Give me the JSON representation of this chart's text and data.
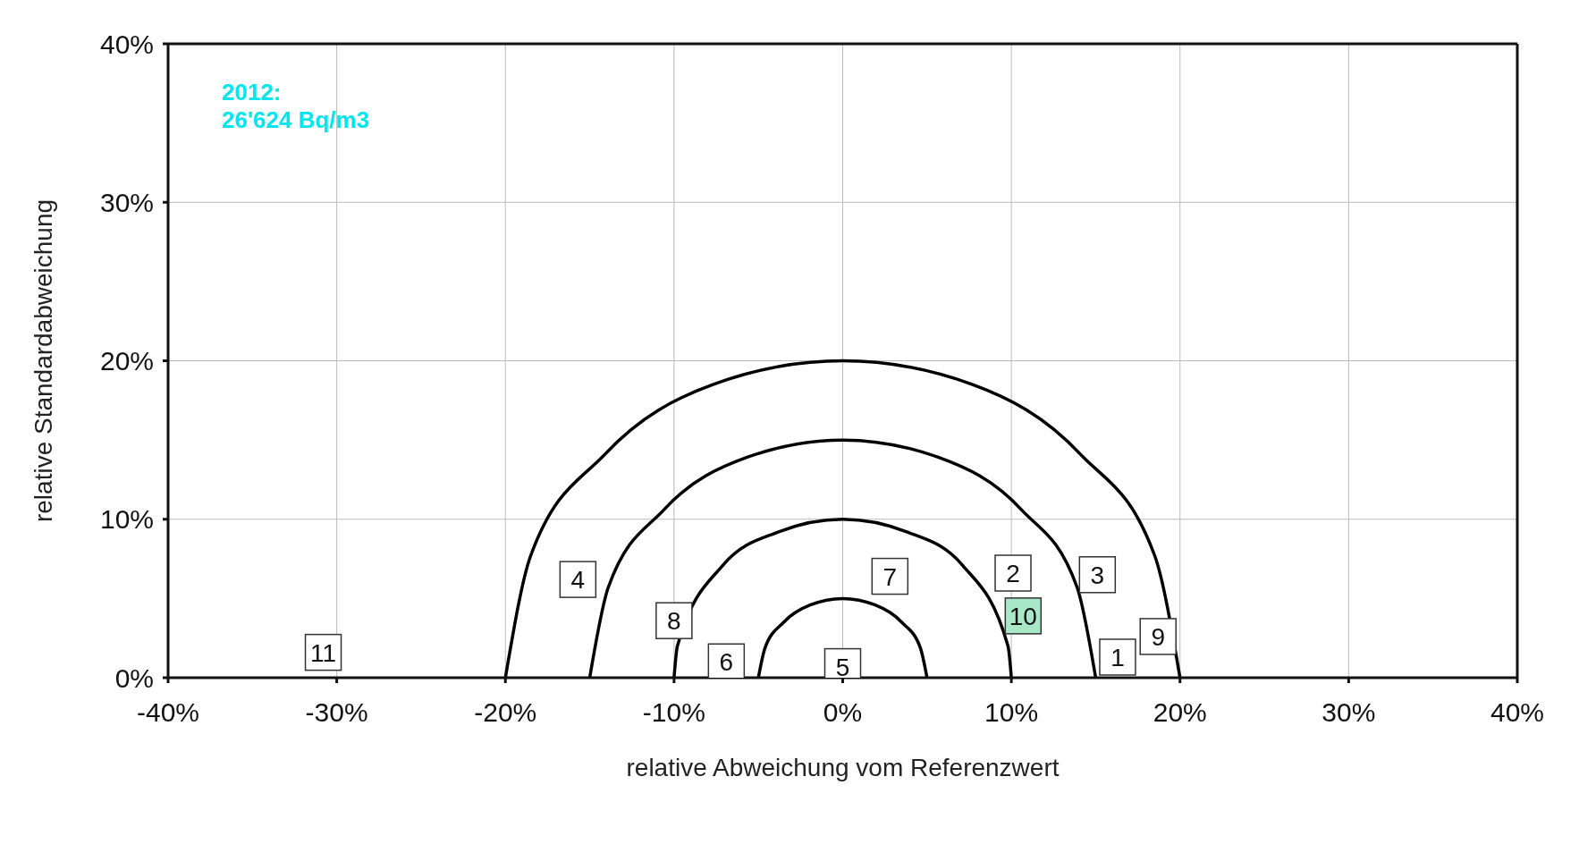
{
  "chart_data": {
    "type": "scatter",
    "xlabel": "relative Abweichung vom Referenzwert",
    "ylabel": "relative Standardabweichung",
    "xlim": [
      -40,
      40
    ],
    "ylim": [
      0,
      40
    ],
    "annotations": [
      "2012:\n26'624 Bq/m3",
      {
        "text": "1",
        "x": 16.3,
        "y": 1.3
      },
      {
        "text": "2",
        "x": 10.1,
        "y": 6.6
      },
      {
        "text": "3",
        "x": 15.1,
        "y": 6.5
      },
      {
        "text": "4",
        "x": -15.7,
        "y": 6.2
      },
      {
        "text": "5",
        "x": 0,
        "y": 0.7
      },
      {
        "text": "6",
        "x": -6.9,
        "y": 1.0
      },
      {
        "text": "7",
        "x": 2.8,
        "y": 6.4
      },
      {
        "text": "8",
        "x": -10,
        "y": 3.6
      },
      {
        "text": "9",
        "x": 18.7,
        "y": 2.6
      },
      {
        "text": "10",
        "x": 10.7,
        "y": 3.9
      },
      {
        "text": "11",
        "x": -30.8,
        "y": 1.6
      }
    ],
    "xticks": [
      {
        "value": -40,
        "label": "-40%"
      },
      {
        "value": -30,
        "label": "-30%"
      },
      {
        "value": -20,
        "label": "-20%"
      },
      {
        "value": -10,
        "label": "-10%"
      },
      {
        "value": 0,
        "label": "0%"
      },
      {
        "value": 10,
        "label": "10%"
      },
      {
        "value": 20,
        "label": "20%"
      },
      {
        "value": 30,
        "label": "30%"
      },
      {
        "value": 40,
        "label": "40%"
      }
    ],
    "yticks": [
      {
        "value": 0,
        "label": "0%"
      },
      {
        "value": 10,
        "label": "10%"
      },
      {
        "value": 20,
        "label": "20%"
      },
      {
        "value": 30,
        "label": "30%"
      },
      {
        "value": 40,
        "label": "40%"
      }
    ],
    "grid": true,
    "marker": "square",
    "series": [
      {
        "type": "line",
        "marker": "none",
        "color": "#000000",
        "x": [
          -5,
          -4.6,
          -3.5,
          -1.9,
          0,
          1.9,
          3.5,
          4.6,
          5
        ],
        "values": [
          0,
          1.9,
          3.5,
          4.6,
          5,
          4.6,
          3.5,
          1.9,
          0
        ]
      },
      {
        "type": "line",
        "marker": "none",
        "color": "#000000",
        "x": [
          -10,
          -9.8,
          -7.1,
          -3.8,
          0,
          3.8,
          7.1,
          9.8,
          10
        ],
        "values": [
          0,
          2.0,
          7.1,
          9.2,
          10,
          9.2,
          7.1,
          2.0,
          0
        ]
      },
      {
        "type": "line",
        "marker": "none",
        "color": "#000000",
        "x": [
          -15,
          -13.9,
          -10.6,
          -5.7,
          0,
          5.7,
          10.6,
          13.9,
          15
        ],
        "values": [
          0,
          5.7,
          10.6,
          13.9,
          15,
          13.9,
          10.6,
          5.7,
          0
        ]
      },
      {
        "type": "line",
        "marker": "none",
        "color": "#000000",
        "x": [
          -20,
          -18.5,
          -14.1,
          -7.7,
          0,
          7.7,
          14.1,
          18.5,
          20
        ],
        "values": [
          0,
          7.7,
          14.1,
          18.5,
          20,
          18.5,
          14.1,
          7.7,
          0
        ]
      },
      {
        "type": "scatter",
        "x": [
          16.3,
          10.1,
          15.1,
          -15.7,
          0,
          -6.9,
          2.8,
          -10,
          18.7,
          10.7,
          -30.8
        ],
        "values": [
          1.3,
          6.6,
          6.5,
          6.2,
          0.7,
          1.0,
          6.4,
          3.6,
          2.6,
          3.9,
          1.6
        ],
        "colors": [
          "#ffffff",
          "#ffffff",
          "#ffffff",
          "#ffffff",
          "#ffffff",
          "#ffffff",
          "#ffffff",
          "#ffffff",
          "#ffffff",
          "#a8e8c8",
          "#ffffff"
        ]
      }
    ]
  }
}
